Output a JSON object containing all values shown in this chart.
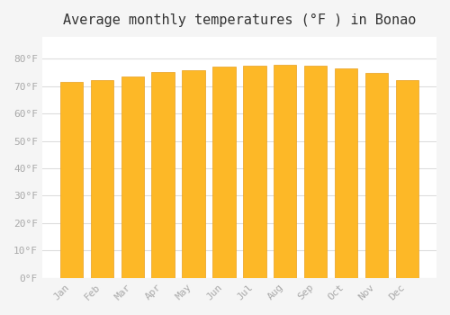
{
  "months": [
    "Jan",
    "Feb",
    "Mar",
    "Apr",
    "May",
    "Jun",
    "Jul",
    "Aug",
    "Sep",
    "Oct",
    "Nov",
    "Dec"
  ],
  "values": [
    71.6,
    72.3,
    73.4,
    75.0,
    75.9,
    77.0,
    77.5,
    77.9,
    77.5,
    76.5,
    74.8,
    72.1
  ],
  "bar_color": "#FDB827",
  "bar_edge_color": "#E8A020",
  "background_color": "#F5F5F5",
  "plot_bg_color": "#FFFFFF",
  "title": "Average monthly temperatures (°F ) in Bonao",
  "title_fontsize": 11,
  "ylabel_ticks": [
    "0°F",
    "10°F",
    "20°F",
    "30°F",
    "40°F",
    "50°F",
    "60°F",
    "70°F",
    "80°F"
  ],
  "ytick_values": [
    0,
    10,
    20,
    30,
    40,
    50,
    60,
    70,
    80
  ],
  "ylim": [
    0,
    88
  ],
  "tick_fontsize": 8,
  "grid_color": "#DDDDDD",
  "tick_label_color": "#AAAAAA"
}
